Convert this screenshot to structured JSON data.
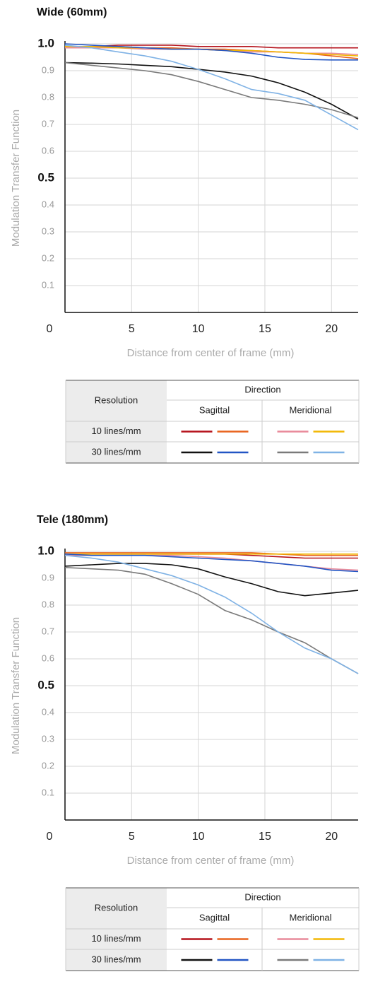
{
  "chart_data": [
    {
      "type": "line",
      "title": "Wide (60mm)",
      "y_label": "Modulation Transfer Function",
      "x_label": "Distance from center of frame (mm)",
      "x": [
        0,
        2,
        4,
        6,
        8,
        10,
        12,
        14,
        16,
        18,
        20,
        22
      ],
      "xlim": [
        0,
        22
      ],
      "xticks": [
        0,
        5,
        10,
        15,
        20
      ],
      "ylim": [
        0,
        1
      ],
      "yticks": [
        0.1,
        0.2,
        0.3,
        0.4,
        {
          "value": 0.5,
          "label": "0.5"
        },
        0.6,
        0.7,
        0.8,
        0.9,
        {
          "value": 1,
          "label": "1.0"
        }
      ],
      "grid": true,
      "legend": {
        "corner": "Resolution",
        "group": "Direction",
        "columns": [
          "Sagittal",
          "Meridional"
        ],
        "rows": [
          "10 lines/mm",
          "30 lines/mm"
        ]
      },
      "series": [
        {
          "color": "#b5121b",
          "values": [
            0.99,
            0.99,
            0.995,
            0.995,
            0.995,
            0.99,
            0.99,
            0.99,
            0.985,
            0.985,
            0.985,
            0.985
          ]
        },
        {
          "color": "#e8641e",
          "values": [
            0.99,
            0.99,
            0.99,
            0.985,
            0.985,
            0.98,
            0.98,
            0.975,
            0.97,
            0.965,
            0.955,
            0.945
          ]
        },
        {
          "color": "#e88a9a",
          "values": [
            0.985,
            0.985,
            0.985,
            0.98,
            0.98,
            0.98,
            0.975,
            0.97,
            0.97,
            0.965,
            0.965,
            0.96
          ]
        },
        {
          "color": "#f2b705",
          "values": [
            0.99,
            0.99,
            0.985,
            0.985,
            0.98,
            0.98,
            0.975,
            0.975,
            0.97,
            0.965,
            0.96,
            0.955
          ]
        },
        {
          "color": "#111111",
          "values": [
            0.93,
            0.928,
            0.925,
            0.92,
            0.915,
            0.905,
            0.895,
            0.88,
            0.855,
            0.82,
            0.775,
            0.72
          ]
        },
        {
          "color": "#2255c4",
          "values": [
            1,
            0.995,
            0.99,
            0.985,
            0.98,
            0.98,
            0.975,
            0.965,
            0.95,
            0.942,
            0.94,
            0.94
          ]
        },
        {
          "color": "#7a7a7a",
          "values": [
            0.93,
            0.92,
            0.91,
            0.9,
            0.885,
            0.86,
            0.83,
            0.8,
            0.79,
            0.775,
            0.755,
            0.725
          ]
        },
        {
          "color": "#7fb2e5",
          "values": [
            0.995,
            0.985,
            0.97,
            0.955,
            0.935,
            0.905,
            0.87,
            0.83,
            0.815,
            0.79,
            0.735,
            0.68
          ]
        }
      ]
    },
    {
      "type": "line",
      "title": "Tele (180mm)",
      "y_label": "Modulation Transfer Function",
      "x_label": "Distance from center of frame (mm)",
      "x": [
        0,
        2,
        4,
        6,
        8,
        10,
        12,
        14,
        16,
        18,
        20,
        22
      ],
      "xlim": [
        0,
        22
      ],
      "xticks": [
        0,
        5,
        10,
        15,
        20
      ],
      "ylim": [
        0,
        1
      ],
      "yticks": [
        0.1,
        0.2,
        0.3,
        0.4,
        {
          "value": 0.5,
          "label": "0.5"
        },
        0.6,
        0.7,
        0.8,
        0.9,
        {
          "value": 1,
          "label": "1.0"
        }
      ],
      "grid": true,
      "legend": {
        "corner": "Resolution",
        "group": "Direction",
        "columns": [
          "Sagittal",
          "Meridional"
        ],
        "rows": [
          "10 lines/mm",
          "30 lines/mm"
        ]
      },
      "series": [
        {
          "color": "#b5121b",
          "values": [
            0.99,
            0.99,
            0.99,
            0.99,
            0.99,
            0.99,
            0.99,
            0.985,
            0.98,
            0.975,
            0.975,
            0.975
          ]
        },
        {
          "color": "#e8641e",
          "values": [
            0.995,
            0.995,
            0.995,
            0.995,
            0.995,
            0.995,
            0.995,
            0.995,
            0.99,
            0.985,
            0.985,
            0.985
          ]
        },
        {
          "color": "#e88a9a",
          "values": [
            0.985,
            0.985,
            0.985,
            0.985,
            0.985,
            0.98,
            0.975,
            0.965,
            0.955,
            0.945,
            0.935,
            0.93
          ]
        },
        {
          "color": "#f2b705",
          "values": [
            0.99,
            0.99,
            0.99,
            0.99,
            0.99,
            0.99,
            0.99,
            0.99,
            0.99,
            0.99,
            0.99,
            0.99
          ]
        },
        {
          "color": "#111111",
          "values": [
            0.945,
            0.95,
            0.955,
            0.955,
            0.95,
            0.935,
            0.905,
            0.88,
            0.85,
            0.835,
            0.845,
            0.855
          ]
        },
        {
          "color": "#2255c4",
          "values": [
            0.99,
            0.985,
            0.985,
            0.985,
            0.98,
            0.975,
            0.97,
            0.965,
            0.955,
            0.945,
            0.93,
            0.925
          ]
        },
        {
          "color": "#7a7a7a",
          "values": [
            0.94,
            0.935,
            0.93,
            0.915,
            0.88,
            0.84,
            0.78,
            0.745,
            0.7,
            0.66,
            0.6,
            0.545
          ]
        },
        {
          "color": "#7fb2e5",
          "values": [
            0.985,
            0.975,
            0.96,
            0.935,
            0.91,
            0.875,
            0.83,
            0.77,
            0.7,
            0.64,
            0.6,
            0.545
          ]
        }
      ]
    }
  ]
}
